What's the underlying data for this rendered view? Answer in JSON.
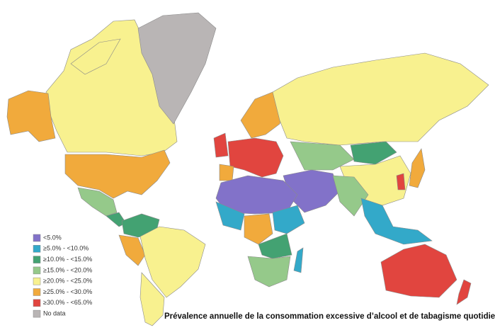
{
  "legend": {
    "items": [
      {
        "label": "<5.0%",
        "color": "#8272c9"
      },
      {
        "label": "≥5.0% - <10.0%",
        "color": "#33a9c9"
      },
      {
        "label": "≥10.0% - <15.0%",
        "color": "#43a272"
      },
      {
        "label": "≥15.0% - <20.0%",
        "color": "#95c98a"
      },
      {
        "label": "≥20.0% - <25.0%",
        "color": "#f8f18f"
      },
      {
        "label": "≥25.0% - <30.0%",
        "color": "#f1aa3c"
      },
      {
        "label": "≥30.0% - <65.0%",
        "color": "#e1453f"
      },
      {
        "label": "No data",
        "color": "#b9b5b5"
      }
    ]
  },
  "caption": "Prévalence annuelle de la consommation excessive d’alcool et de tabagisme quotidien"
}
